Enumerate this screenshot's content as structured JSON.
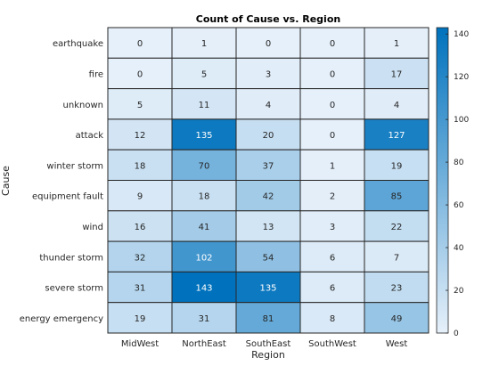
{
  "chart_data": {
    "type": "heatmap",
    "title": "Count of Cause vs. Region",
    "xlabel": "Region",
    "ylabel": "Cause",
    "x_categories": [
      "MidWest",
      "NorthEast",
      "SouthEast",
      "SouthWest",
      "West"
    ],
    "y_categories": [
      "earthquake",
      "fire",
      "unknown",
      "attack",
      "winter storm",
      "equipment fault",
      "wind",
      "thunder storm",
      "severe storm",
      "energy emergency"
    ],
    "values": [
      [
        0,
        1,
        0,
        0,
        1
      ],
      [
        0,
        5,
        3,
        0,
        17
      ],
      [
        5,
        11,
        4,
        0,
        4
      ],
      [
        12,
        135,
        20,
        0,
        127
      ],
      [
        18,
        70,
        37,
        1,
        19
      ],
      [
        9,
        18,
        42,
        2,
        85
      ],
      [
        16,
        41,
        13,
        3,
        22
      ],
      [
        32,
        102,
        54,
        6,
        7
      ],
      [
        31,
        143,
        135,
        6,
        23
      ],
      [
        19,
        31,
        81,
        8,
        49
      ]
    ],
    "colorbar": {
      "min": 0,
      "max": 143,
      "ticks": [
        0,
        20,
        40,
        60,
        80,
        100,
        120,
        140
      ],
      "color_low": "#e6f0fa",
      "color_high": "#0072bd"
    }
  }
}
